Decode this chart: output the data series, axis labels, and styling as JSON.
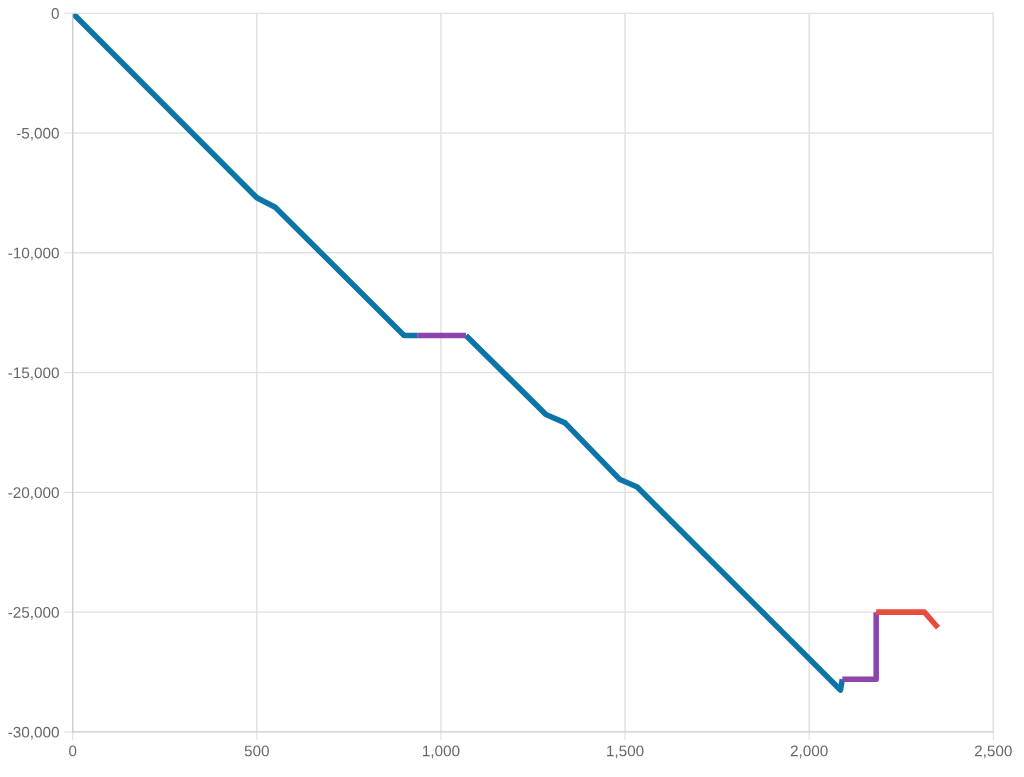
{
  "chart_data": {
    "type": "line",
    "xlim": [
      0,
      2500
    ],
    "ylim": [
      -30000,
      0
    ],
    "xticks": [
      0,
      500,
      {
        "value": 1000,
        "label": "1,000"
      },
      {
        "value": 1500,
        "label": "1,500"
      },
      {
        "value": 2000,
        "label": "2,000"
      },
      {
        "value": 2500,
        "label": "2,500"
      }
    ],
    "yticks": [
      {
        "value": -30000,
        "label": "-30,000"
      },
      {
        "value": -25000,
        "label": "-25,000"
      },
      {
        "value": -20000,
        "label": "-20,000"
      },
      {
        "value": -15000,
        "label": "-15,000"
      },
      {
        "value": -10000,
        "label": "-10,000"
      },
      {
        "value": -5000,
        "label": "-5,000"
      },
      0
    ],
    "grid": true,
    "marker": "none",
    "line_style": "solid",
    "series": [
      {
        "color": "#0b74a8",
        "x": [
          0,
          500,
          550,
          900,
          937
        ],
        "values": [
          0,
          -7700,
          -8100,
          -13450,
          -13450
        ]
      },
      {
        "color": "#0b74a8",
        "x": [
          1068,
          1285,
          1337,
          1485,
          1533,
          2085,
          2090
        ],
        "values": [
          -13450,
          -16750,
          -17100,
          -19450,
          -19780,
          -28250,
          -27800
        ]
      },
      {
        "color": "#8e44ad",
        "x": [
          937,
          1068
        ],
        "values": [
          -13450,
          -13450
        ]
      },
      {
        "color": "#8e44ad",
        "x": [
          2090,
          2182,
          2182
        ],
        "values": [
          -27800,
          -27800,
          -25000
        ]
      },
      {
        "color": "#e74c3c",
        "x": [
          2182,
          2313,
          2350
        ],
        "values": [
          -25000,
          -25000,
          -25650
        ]
      }
    ]
  }
}
